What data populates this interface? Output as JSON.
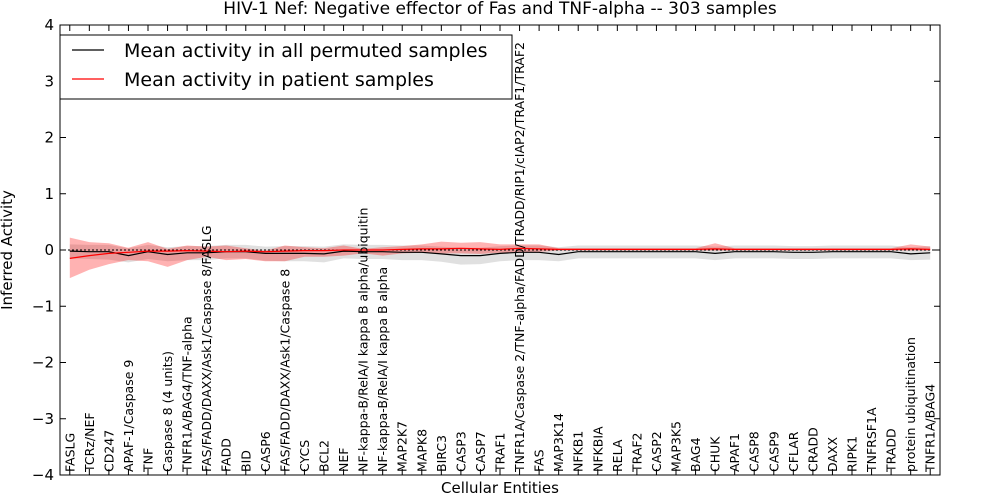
{
  "chart_data": {
    "type": "line",
    "title": "HIV-1 Nef: Negative effector of Fas and TNF-alpha -- 303 samples",
    "xlabel": "Cellular Entities",
    "ylabel": "Inferred Activity",
    "ylim": [
      -4,
      4
    ],
    "yticks": [
      -4,
      -3,
      -2,
      -1,
      0,
      1,
      2,
      3,
      4
    ],
    "ytick_labels": [
      "−4",
      "−3",
      "−2",
      "−1",
      "0",
      "1",
      "2",
      "3",
      "4"
    ],
    "categories": [
      "FASLG",
      "TCRz/NEF",
      "CD247",
      "APAF-1/Caspase 9",
      "TNF",
      "Caspase 8 (4 units)",
      "TNFR1A/BAG4/TNF-alpha",
      "FAS/FADD/DAXX/Ask1/Caspase 8/FASLG",
      "FADD",
      "BID",
      "CASP6",
      "FAS/FADD/DAXX/Ask1/Caspase 8",
      "CYCS",
      "BCL2",
      "NEF",
      "NF-kappa-B/RelA/I kappa B alpha/ubiquitin",
      "NF-kappa-B/RelA/I kappa B alpha",
      "MAP2K7",
      "MAPK8",
      "BIRC3",
      "CASP3",
      "CASP7",
      "TRAF1",
      "TNFR1A/Caspase 2/TNF-alpha/FADD/TRADD/RIP1/cIAP2/TRAF1/TRAF2",
      "FAS",
      "MAP3K14",
      "NFKB1",
      "NFKBIA",
      "RELA",
      "TRAF2",
      "CASP2",
      "MAP3K5",
      "BAG4",
      "CHUK",
      "APAF1",
      "CASP8",
      "CASP9",
      "CFLAR",
      "CRADD",
      "DAXX",
      "RIPK1",
      "TNFRSF1A",
      "TRADD",
      "protein ubiquitination",
      "TNFR1A/BAG4"
    ],
    "legend_position": "top-left",
    "series": [
      {
        "name": "Mean activity in all permuted samples",
        "color": "#000000",
        "values": [
          -0.02,
          -0.03,
          -0.03,
          -0.1,
          -0.03,
          -0.08,
          -0.05,
          -0.05,
          -0.03,
          -0.03,
          -0.06,
          -0.06,
          -0.06,
          -0.07,
          -0.02,
          -0.03,
          -0.03,
          -0.04,
          -0.04,
          -0.07,
          -0.1,
          -0.1,
          -0.06,
          -0.04,
          -0.04,
          -0.08,
          -0.03,
          -0.03,
          -0.03,
          -0.03,
          -0.03,
          -0.03,
          -0.03,
          -0.06,
          -0.03,
          -0.03,
          -0.03,
          -0.04,
          -0.04,
          -0.03,
          -0.03,
          -0.03,
          -0.03,
          -0.07,
          -0.05
        ],
        "band_low": [
          -0.15,
          -0.16,
          -0.17,
          -0.22,
          -0.16,
          -0.2,
          -0.18,
          -0.18,
          -0.15,
          -0.15,
          -0.19,
          -0.2,
          -0.2,
          -0.22,
          -0.15,
          -0.16,
          -0.16,
          -0.18,
          -0.18,
          -0.21,
          -0.26,
          -0.25,
          -0.2,
          -0.18,
          -0.18,
          -0.2,
          -0.15,
          -0.15,
          -0.15,
          -0.15,
          -0.15,
          -0.15,
          -0.15,
          -0.18,
          -0.15,
          -0.15,
          -0.15,
          -0.16,
          -0.16,
          -0.15,
          -0.15,
          -0.15,
          -0.15,
          -0.18,
          -0.17
        ],
        "band_high": [
          0.1,
          0.09,
          0.09,
          0.03,
          0.09,
          0.05,
          0.07,
          0.07,
          0.09,
          0.09,
          0.06,
          0.07,
          0.07,
          0.06,
          0.1,
          0.09,
          0.09,
          0.08,
          0.08,
          0.06,
          0.04,
          0.04,
          0.07,
          0.08,
          0.08,
          0.05,
          0.08,
          0.08,
          0.08,
          0.08,
          0.08,
          0.08,
          0.08,
          0.06,
          0.08,
          0.08,
          0.08,
          0.07,
          0.07,
          0.08,
          0.08,
          0.08,
          0.08,
          0.05,
          0.07
        ]
      },
      {
        "name": "Mean activity in patient samples",
        "color": "#ff0000",
        "values": [
          -0.15,
          -0.1,
          -0.06,
          -0.04,
          -0.02,
          -0.02,
          -0.01,
          -0.02,
          -0.03,
          -0.02,
          -0.03,
          -0.02,
          -0.01,
          -0.01,
          0,
          0,
          0,
          0.01,
          0.02,
          0.02,
          0.03,
          0.02,
          0.01,
          0.03,
          0.02,
          0.01,
          0.01,
          0.01,
          0.01,
          0.01,
          0.01,
          0.01,
          0.01,
          0.02,
          0.01,
          0.01,
          0.01,
          0.01,
          0.01,
          0.01,
          0.01,
          0.01,
          0.01,
          0.02,
          0.01
        ],
        "band_low": [
          -0.5,
          -0.35,
          -0.25,
          -0.18,
          -0.2,
          -0.3,
          -0.18,
          -0.12,
          -0.18,
          -0.16,
          -0.2,
          -0.2,
          -0.12,
          -0.12,
          -0.1,
          -0.06,
          -0.1,
          -0.06,
          -0.05,
          -0.06,
          -0.06,
          -0.07,
          -0.05,
          -0.04,
          -0.03,
          -0.01,
          -0.01,
          -0.01,
          -0.01,
          -0.01,
          -0.01,
          -0.01,
          -0.01,
          -0.01,
          -0.01,
          -0.01,
          -0.01,
          -0.01,
          -0.01,
          -0.01,
          -0.01,
          -0.01,
          -0.01,
          -0.01,
          -0.01
        ],
        "band_high": [
          0.22,
          0.14,
          0.12,
          0.04,
          0.14,
          0.02,
          0.08,
          0.06,
          0.08,
          0.03,
          -0.01,
          0.08,
          0.05,
          0.03,
          0.08,
          0.02,
          0.05,
          0.07,
          0.1,
          0.15,
          0.13,
          0.14,
          0.1,
          0.1,
          0.1,
          0.03,
          0.03,
          0.03,
          0.03,
          0.03,
          0.03,
          0.03,
          0.03,
          0.12,
          0.03,
          0.03,
          0.03,
          0.03,
          0.03,
          0.03,
          0.03,
          0.03,
          0.03,
          0.1,
          0.06
        ]
      }
    ],
    "zero_line": true
  }
}
